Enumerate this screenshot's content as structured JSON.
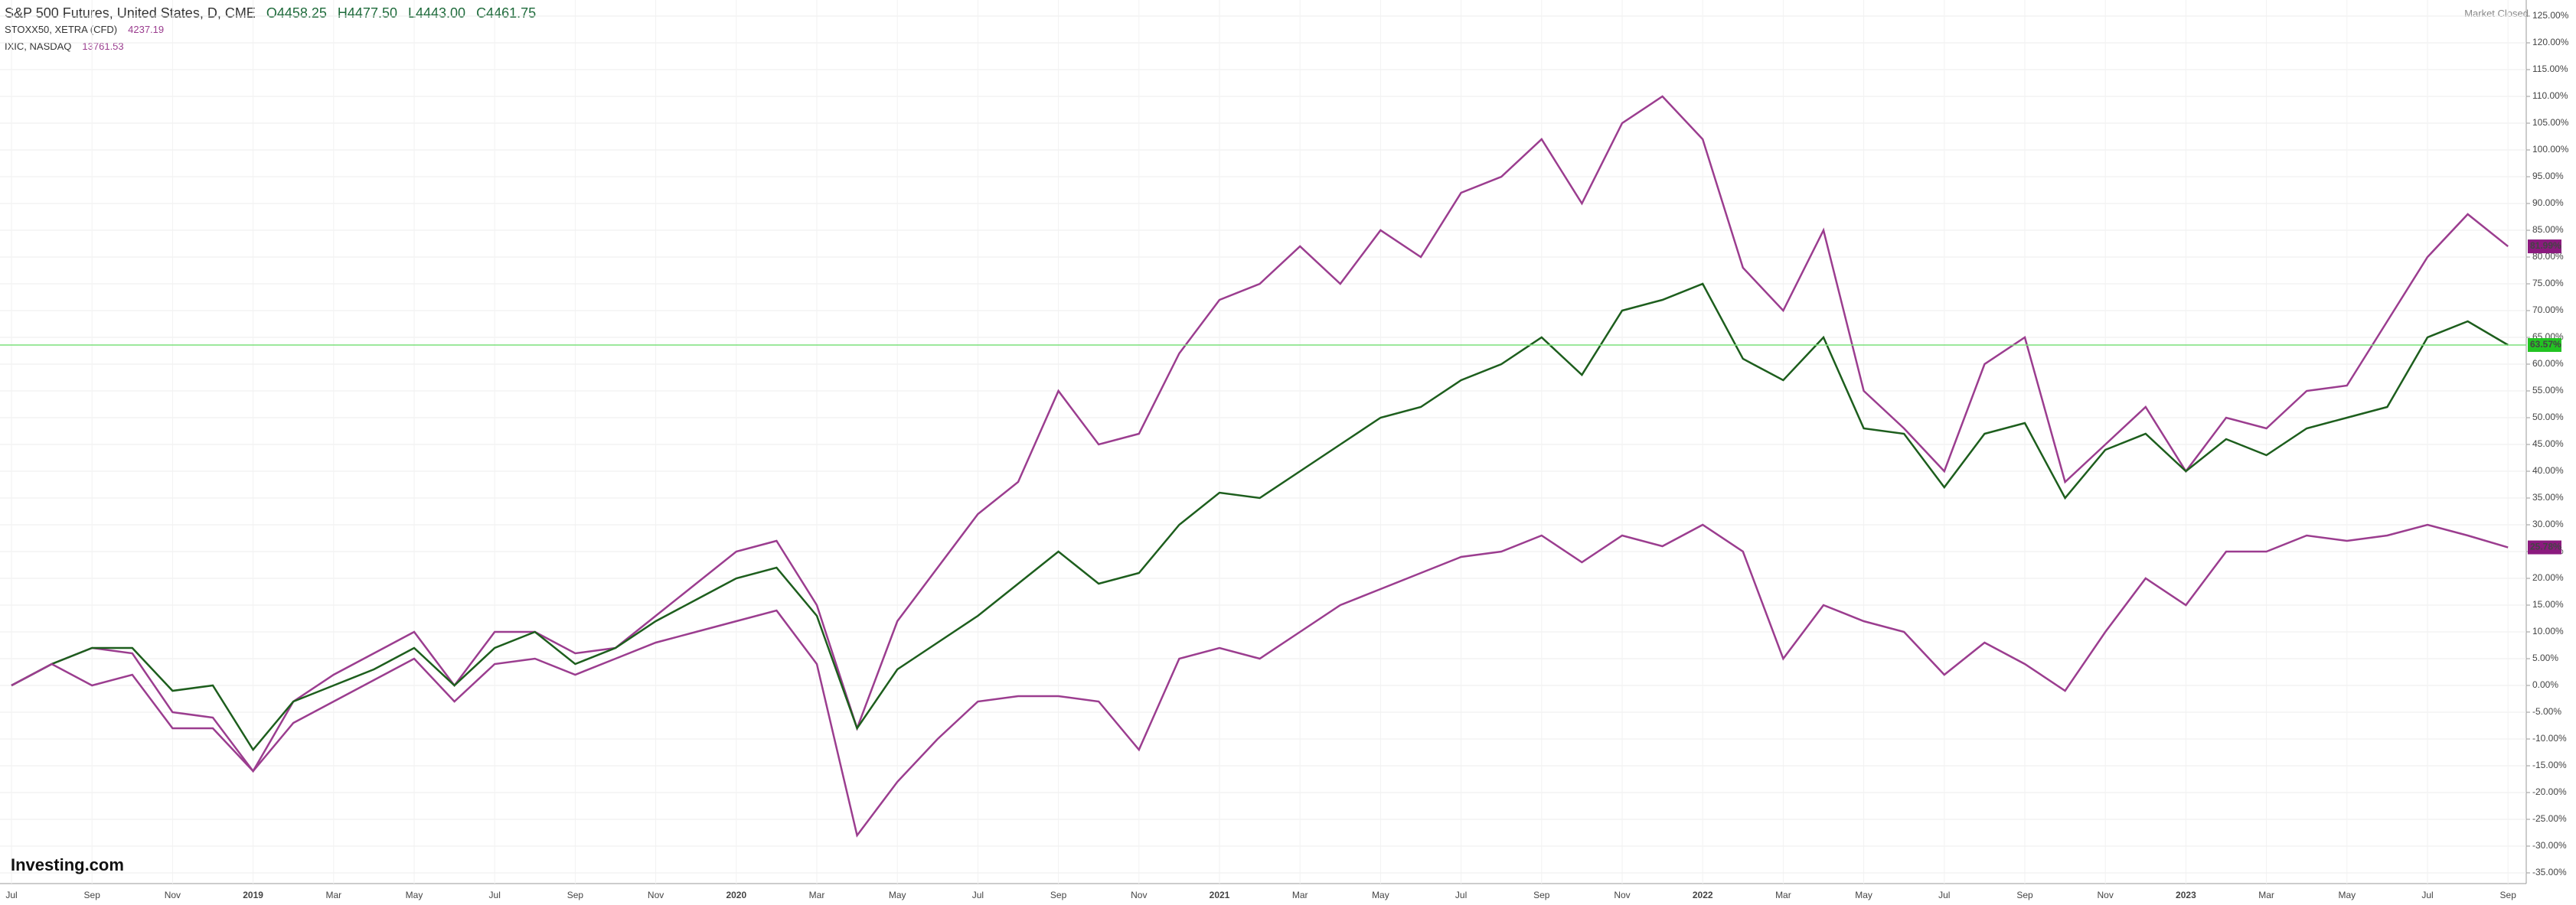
{
  "header": {
    "title": "S&P 500 Futures, United States, D, CME",
    "open": "O4458.25",
    "high": "H4477.50",
    "low": "L4443.00",
    "close": "C4461.75",
    "compare": [
      {
        "name": "STOXX50, XETRA (CFD)",
        "value": "4237.19"
      },
      {
        "name": "IXIC, NASDAQ",
        "value": "13761.53"
      }
    ],
    "status": "Market Closed",
    "brand": "Investing.com"
  },
  "chart_data": {
    "type": "line",
    "categories": [
      "Jul",
      null,
      "Sep",
      null,
      "Nov",
      null,
      "2019",
      null,
      "Mar",
      null,
      "May",
      null,
      "Jul",
      null,
      "Sep",
      null,
      "Nov",
      null,
      "2020",
      null,
      "Mar",
      null,
      "May",
      null,
      "Jul",
      null,
      "Sep",
      null,
      "Nov",
      null,
      "2021",
      null,
      "Mar",
      null,
      "May",
      null,
      "Jul",
      null,
      "Sep",
      null,
      "Nov",
      null,
      "2022",
      null,
      "Mar",
      null,
      "May",
      null,
      "Jul",
      null,
      "Sep",
      null,
      "Nov",
      null,
      "2023",
      null,
      "Mar",
      null,
      "May",
      null,
      "Jul",
      null,
      "Sep"
    ],
    "series": [
      {
        "name": "IXIC, NASDAQ",
        "color": "#9b3d8f",
        "values": [
          0,
          4,
          7,
          6,
          -5,
          -6,
          -16,
          -3,
          2,
          6,
          10,
          0,
          10,
          10,
          6,
          7,
          13,
          19,
          25,
          27,
          15,
          -8,
          12,
          22,
          32,
          38,
          55,
          45,
          47,
          62,
          72,
          75,
          82,
          75,
          85,
          80,
          92,
          95,
          102,
          90,
          105,
          110,
          102,
          78,
          70,
          85,
          55,
          48,
          40,
          60,
          65,
          38,
          45,
          52,
          40,
          50,
          48,
          55,
          56,
          68,
          80,
          88,
          81.99
        ],
        "value_labels": [
          null,
          null,
          null,
          null,
          null,
          null,
          null,
          null,
          null,
          null,
          null,
          null,
          null,
          null,
          null,
          null,
          null,
          null,
          null,
          null,
          null,
          null,
          null,
          null,
          null,
          null,
          null,
          null,
          null,
          null,
          null,
          null,
          null,
          null,
          null,
          null,
          null,
          null,
          null,
          null,
          null,
          null,
          null,
          null,
          null,
          null,
          null,
          null,
          null,
          null,
          null,
          null,
          null,
          null,
          null,
          null,
          null,
          null,
          null,
          null,
          null,
          null,
          "81.99%"
        ]
      },
      {
        "name": "S&P 500 Futures",
        "color": "#1d5e1d",
        "values": [
          0,
          4,
          7,
          7,
          -1,
          0,
          -12,
          -3,
          0,
          3,
          7,
          0,
          7,
          10,
          4,
          7,
          12,
          16,
          20,
          22,
          13,
          -8,
          3,
          8,
          13,
          19,
          25,
          19,
          21,
          30,
          36,
          35,
          40,
          45,
          50,
          52,
          57,
          60,
          65,
          58,
          70,
          72,
          75,
          61,
          57,
          65,
          48,
          47,
          37,
          47,
          49,
          35,
          44,
          47,
          40,
          46,
          43,
          48,
          50,
          52,
          65,
          68,
          63.57
        ],
        "value_labels": [
          null,
          null,
          null,
          null,
          null,
          null,
          null,
          null,
          null,
          null,
          null,
          null,
          null,
          null,
          null,
          null,
          null,
          null,
          null,
          null,
          null,
          null,
          null,
          null,
          null,
          null,
          null,
          null,
          null,
          null,
          null,
          null,
          null,
          null,
          null,
          null,
          null,
          null,
          null,
          null,
          null,
          null,
          null,
          null,
          null,
          null,
          null,
          null,
          null,
          null,
          null,
          null,
          null,
          null,
          null,
          null,
          null,
          null,
          null,
          null,
          null,
          null,
          "63.57%"
        ]
      },
      {
        "name": "STOXX50, XETRA (CFD)",
        "color": "#9b3d8f",
        "values": [
          0,
          4,
          0,
          2,
          -8,
          -8,
          -16,
          -7,
          -3,
          1,
          5,
          -3,
          4,
          5,
          2,
          5,
          8,
          10,
          12,
          14,
          4,
          -28,
          -18,
          -10,
          -3,
          -2,
          -2,
          -3,
          -12,
          5,
          7,
          5,
          10,
          15,
          18,
          21,
          24,
          25,
          28,
          23,
          28,
          26,
          30,
          25,
          5,
          15,
          12,
          10,
          2,
          8,
          4,
          -1,
          10,
          20,
          15,
          25,
          25,
          28,
          27,
          28,
          30,
          28,
          25.78
        ],
        "value_labels": [
          null,
          null,
          null,
          null,
          null,
          null,
          null,
          null,
          null,
          null,
          null,
          null,
          null,
          null,
          null,
          null,
          null,
          null,
          null,
          null,
          null,
          null,
          null,
          null,
          null,
          null,
          null,
          null,
          null,
          null,
          null,
          null,
          null,
          null,
          null,
          null,
          null,
          null,
          null,
          null,
          null,
          null,
          null,
          null,
          null,
          null,
          null,
          null,
          null,
          null,
          null,
          null,
          null,
          null,
          null,
          null,
          null,
          null,
          null,
          null,
          null,
          null,
          "25.78%"
        ]
      }
    ],
    "ylim": [
      -37,
      128
    ],
    "yticks": [
      {
        "value": -35,
        "label": "-35.00%"
      },
      {
        "value": -30,
        "label": "-30.00%"
      },
      {
        "value": -25,
        "label": "-25.00%"
      },
      {
        "value": -20,
        "label": "-20.00%"
      },
      {
        "value": -15,
        "label": "-15.00%"
      },
      {
        "value": -10,
        "label": "-10.00%"
      },
      {
        "value": -5,
        "label": "-5.00%"
      },
      {
        "value": 0,
        "label": "0.00%"
      },
      {
        "value": 5,
        "label": "5.00%"
      },
      {
        "value": 10,
        "label": "10.00%"
      },
      {
        "value": 15,
        "label": "15.00%"
      },
      {
        "value": 20,
        "label": "20.00%"
      },
      {
        "value": 25,
        "label": "25.00%"
      },
      {
        "value": 30,
        "label": "30.00%"
      },
      {
        "value": 35,
        "label": "35.00%"
      },
      {
        "value": 40,
        "label": "40.00%"
      },
      {
        "value": 45,
        "label": "45.00%"
      },
      {
        "value": 50,
        "label": "50.00%"
      },
      {
        "value": 55,
        "label": "55.00%"
      },
      {
        "value": 60,
        "label": "60.00%"
      },
      {
        "value": 65,
        "label": "65.00%"
      },
      {
        "value": 70,
        "label": "70.00%"
      },
      {
        "value": 75,
        "label": "75.00%"
      },
      {
        "value": 80,
        "label": "80.00%"
      },
      {
        "value": 85,
        "label": "85.00%"
      },
      {
        "value": 90,
        "label": "90.00%"
      },
      {
        "value": 95,
        "label": "95.00%"
      },
      {
        "value": 100,
        "label": "100.00%"
      },
      {
        "value": 105,
        "label": "105.00%"
      },
      {
        "value": 110,
        "label": "110.00%"
      },
      {
        "value": 115,
        "label": "115.00%"
      },
      {
        "value": 120,
        "label": "120.00%"
      },
      {
        "value": 125,
        "label": "125.00%"
      }
    ],
    "grid": true
  }
}
